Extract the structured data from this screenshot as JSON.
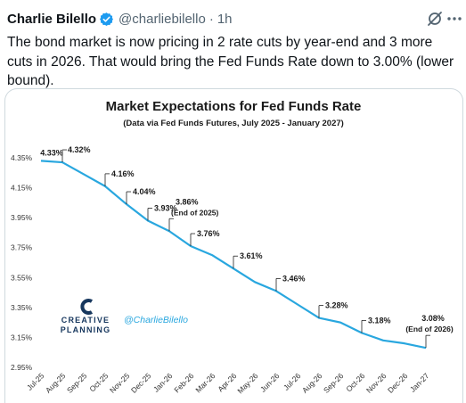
{
  "tweet": {
    "author_name": "Charlie Bilello",
    "handle": "@charliebilello",
    "separator": "·",
    "time": "1h",
    "text": "The bond market is now pricing in 2 rate cuts by year-end and 3 more cuts in 2026. That would bring the Fed Funds Rate down to 3.00% (lower bound)."
  },
  "colors": {
    "line": "#29a7df",
    "verified": "#1d9bf0",
    "muted": "#536471",
    "brand": "#17375e"
  },
  "icons": {
    "verified": "verified-badge-icon",
    "grok": "grok-icon",
    "more": "more-icon"
  },
  "brand": {
    "line1": "CREATIVE",
    "line2": "PLANNING",
    "handle": "@CharlieBilello"
  },
  "chart_data": {
    "type": "line",
    "title": "Market Expectations for Fed Funds Rate",
    "subtitle": "(Data via Fed Funds Futures, July 2025 - January 2027)",
    "x": [
      "Jul-25",
      "Aug-25",
      "Sep-25",
      "Oct-25",
      "Nov-25",
      "Dec-25",
      "Jan-26",
      "Feb-26",
      "Mar-26",
      "Apr-26",
      "May-26",
      "Jun-26",
      "Jul-26",
      "Aug-26",
      "Sep-26",
      "Oct-26",
      "Nov-26",
      "Dec-26",
      "Jan-27"
    ],
    "series": [
      {
        "values": [
          4.33,
          4.32,
          4.24,
          4.16,
          4.04,
          3.93,
          3.86,
          3.76,
          3.7,
          3.61,
          3.52,
          3.46,
          3.37,
          3.28,
          3.25,
          3.18,
          3.13,
          3.11,
          3.08
        ]
      }
    ],
    "y_ticks": [
      4.35,
      4.15,
      3.95,
      3.75,
      3.55,
      3.35,
      3.15,
      2.95
    ],
    "ylim": [
      2.95,
      4.35
    ],
    "y_tick_format": "percent-2dp",
    "grid": false,
    "annotations": [
      {
        "index": 0,
        "text": "4.33%"
      },
      {
        "index": 1,
        "text": "4.32%"
      },
      {
        "index": 3,
        "text": "4.16%"
      },
      {
        "index": 4,
        "text": "4.04%"
      },
      {
        "index": 5,
        "text": "3.93%"
      },
      {
        "index": 6,
        "text": "3.86%",
        "note": "(End of 2025)"
      },
      {
        "index": 7,
        "text": "3.76%"
      },
      {
        "index": 9,
        "text": "3.61%"
      },
      {
        "index": 11,
        "text": "3.46%"
      },
      {
        "index": 13,
        "text": "3.28%"
      },
      {
        "index": 15,
        "text": "3.18%"
      },
      {
        "index": 18,
        "text": "3.08%",
        "note": "(End of 2026)"
      }
    ]
  }
}
